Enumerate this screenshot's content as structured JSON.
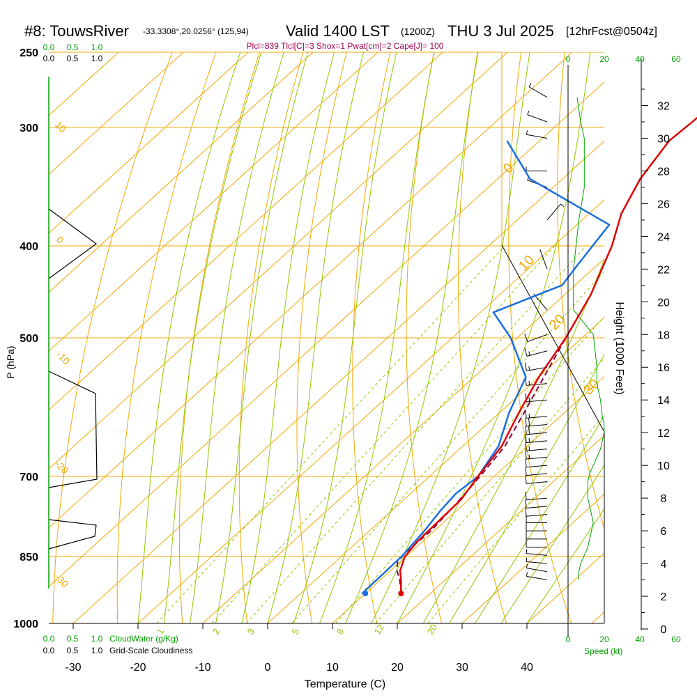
{
  "header": {
    "title_main": "#8: TouwsRiver",
    "title_coords": "-33.3308°,20.0256° (125,94)",
    "title_valid": "Valid 1400 LST",
    "title_z": "(1200Z)",
    "title_date": "THU 3 Jul 2025",
    "title_fcst": "[12hrFcst@0504z]",
    "params": "Plcl=839 Tlcl[C]=3 Shox=1 Pwat[cm]=2 Cape[J]= 100"
  },
  "colors": {
    "isotherm": "#f0a800",
    "dry_adiabat": "#f0a800",
    "moist_adiabat": "#90c800",
    "mixing_ratio": "#90c800",
    "temperature": "#e00000",
    "dewpoint": "#1a6fe0",
    "parcel": "#800040",
    "params_text": "#a0004a",
    "cloud_axis": "#00a000"
  },
  "axes": {
    "x_label": "Temperature (C)",
    "y_label": "P (hPa)",
    "y2_label": "Height (1000 Feet)",
    "pressure_ticks": [
      "250",
      "300",
      "400",
      "500",
      "700",
      "850",
      "1000"
    ],
    "temp_ticks": [
      "-30",
      "-20",
      "-10",
      "0",
      "10",
      "20",
      "30",
      "40"
    ],
    "height_ticks": [
      "0",
      "2",
      "4",
      "6",
      "8",
      "10",
      "12",
      "14",
      "16",
      "18",
      "20",
      "22",
      "24",
      "26",
      "28",
      "30",
      "32"
    ],
    "speed_ticks": [
      "0",
      "20",
      "40",
      "60"
    ],
    "speed_label": "Speed (kt)",
    "cloudwater_ticks": [
      "0.0",
      "0.5",
      "1.0"
    ],
    "cloudwater_label": "CloudWater (g/Kg)",
    "cloudiness_ticks": [
      "0.0",
      "0.5",
      "1.0"
    ],
    "cloudiness_label": "Grid-Scale Cloudiness"
  },
  "adiabat_labels": {
    "dry": [
      "10",
      "0",
      "-10",
      "-20",
      "-30"
    ],
    "moist": [
      "0",
      "10",
      "20",
      "30"
    ],
    "mixing_ratio": [
      "1",
      "2",
      "3",
      "5",
      "8",
      "12",
      "20"
    ]
  },
  "chart_data": {
    "type": "line",
    "skew_t": true,
    "pressure_range_hpa": [
      1000,
      250
    ],
    "temperature_range_c": [
      -33,
      47
    ],
    "temperature": {
      "pressure": [
        930,
        900,
        880,
        850,
        820,
        780,
        740,
        700,
        650,
        600,
        550,
        500,
        450,
        400,
        370,
        340,
        310,
        290,
        260
      ],
      "value": [
        15.5,
        13.2,
        11.5,
        9.8,
        9.2,
        9.0,
        8.8,
        7.5,
        6.0,
        3.0,
        0.0,
        -2.5,
        -6.0,
        -11.0,
        -15.0,
        -18.0,
        -20.0,
        -19.5,
        -18.0
      ]
    },
    "dewpoint": {
      "pressure": [
        930,
        850,
        800,
        760,
        730,
        700,
        650,
        600,
        550,
        500,
        470,
        440,
        420,
        380,
        340,
        310
      ],
      "value": [
        9.5,
        9.3,
        8.5,
        7.5,
        7.0,
        7.5,
        5.5,
        1.5,
        -2.0,
        -11.0,
        -18.0,
        -12.0,
        -13.0,
        -15.0,
        -35.0,
        -45.0
      ]
    },
    "surface_dewpoint_marker": {
      "pressure": 930,
      "value": 10.0
    },
    "surface_temperature_marker": {
      "pressure": 930,
      "value": 15.5
    },
    "parcel": {
      "pressure": [
        930,
        900,
        880,
        860,
        839,
        800,
        750,
        700,
        650,
        600,
        550,
        500
      ],
      "value": [
        15.5,
        13.0,
        11.0,
        9.5,
        9.2,
        9.5,
        8.8,
        7.8,
        6.5,
        3.8,
        0.8,
        -2.5
      ]
    },
    "wind_height_kft": [
      3,
      3.5,
      4,
      4.5,
      5,
      5.5,
      6,
      6.5,
      7,
      7.5,
      8,
      9,
      9.5,
      10,
      10.5,
      11,
      11.5,
      12,
      12.5,
      13,
      14,
      15,
      16,
      17,
      18,
      19.5,
      22,
      25,
      27,
      28,
      30,
      31,
      32.5
    ],
    "wind_speed_kt": [
      6,
      6,
      7,
      9,
      11,
      12,
      13,
      14,
      13,
      12,
      11,
      11,
      12,
      14,
      16,
      18,
      19,
      20,
      20,
      19,
      18,
      16,
      16,
      15,
      14,
      3,
      3,
      6,
      9,
      9,
      9,
      7,
      5
    ],
    "wind_direction_deg": [
      280,
      280,
      275,
      275,
      270,
      270,
      270,
      270,
      265,
      265,
      265,
      265,
      265,
      265,
      265,
      265,
      265,
      265,
      265,
      265,
      265,
      265,
      260,
      255,
      250,
      320,
      340,
      40,
      290,
      270,
      280,
      290,
      300
    ]
  }
}
